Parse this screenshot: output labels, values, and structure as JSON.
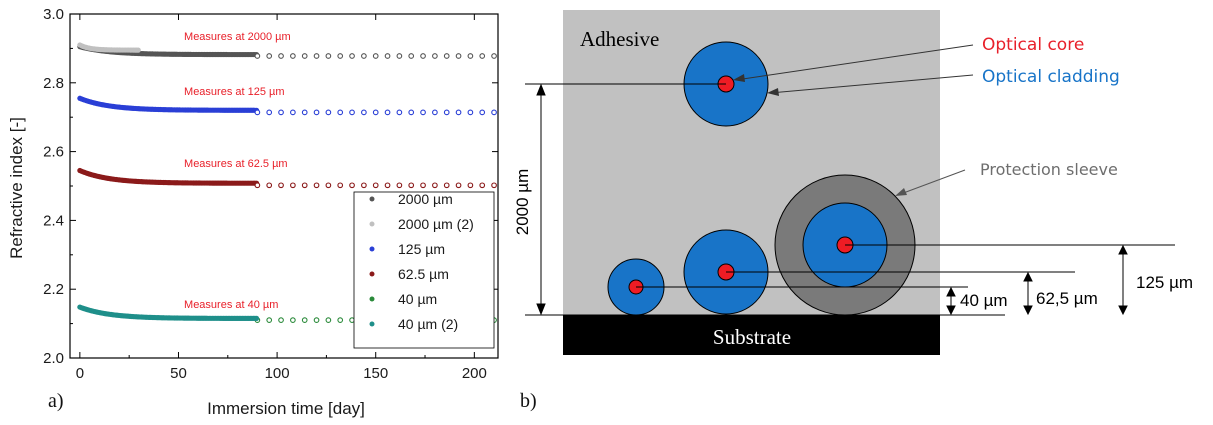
{
  "panel_a": {
    "label": "a)",
    "chart_data": {
      "type": "scatter",
      "xlabel": "Immersion time [day]",
      "ylabel": "Refractive index [-]",
      "xlim": [
        -5,
        212
      ],
      "ylim": [
        2.0,
        3.0
      ],
      "xticks": [
        0,
        50,
        100,
        150,
        200
      ],
      "yticks": [
        2.0,
        2.2,
        2.4,
        2.6,
        2.8,
        3.0
      ],
      "ytick_labels": [
        "2.0",
        "2.2",
        "2.4",
        "2.6",
        "2.8",
        "3.0"
      ],
      "grid": false,
      "legend_position": "bottom-right",
      "series": [
        {
          "name": "2000 µm",
          "color": "#555555",
          "dense_x_range": [
            0,
            90
          ],
          "dense_start": 2.905,
          "dense_end": 2.882,
          "sparse_x": [
            90,
            96,
            102,
            108,
            114,
            120,
            126,
            132,
            138,
            144,
            150,
            156,
            162,
            168,
            174,
            180,
            186,
            192,
            198,
            204,
            210
          ],
          "sparse_y": 2.878
        },
        {
          "name": "2000 µm (2)",
          "color": "#c0c0c0",
          "dense_x_range": [
            0,
            30
          ],
          "dense_start": 2.91,
          "dense_end": 2.895
        },
        {
          "name": "125 µm",
          "color": "#2a3fd6",
          "dense_x_range": [
            0,
            90
          ],
          "dense_start": 2.755,
          "dense_end": 2.72,
          "sparse_x": [
            90,
            96,
            102,
            108,
            114,
            120,
            126,
            132,
            138,
            144,
            150,
            156,
            162,
            168,
            174,
            180,
            186,
            192,
            198,
            204,
            210
          ],
          "sparse_y": 2.714
        },
        {
          "name": "62.5 µm",
          "color": "#8b1a1a",
          "dense_x_range": [
            0,
            90
          ],
          "dense_start": 2.545,
          "dense_end": 2.508,
          "sparse_x": [
            90,
            96,
            102,
            108,
            114,
            120,
            126,
            132,
            138,
            144,
            150,
            156,
            162,
            168,
            174,
            180,
            186,
            192,
            198,
            204,
            210
          ],
          "sparse_y": 2.502
        },
        {
          "name": "40 µm",
          "color": "#2a8a3a",
          "sparse_x": [
            90,
            96,
            102,
            108,
            114,
            120,
            126,
            132,
            138,
            144,
            150,
            156,
            162,
            168,
            174,
            180,
            186,
            192,
            198,
            204,
            210
          ],
          "sparse_y": 2.11
        },
        {
          "name": "40 µm (2)",
          "color": "#1f8f8a",
          "dense_x_range": [
            0,
            90
          ],
          "dense_start": 2.148,
          "dense_end": 2.115
        }
      ],
      "annotations": [
        {
          "text": "Measures at 2000 µm",
          "x": 30,
          "y": 2.925
        },
        {
          "text": "Measures at 125 µm",
          "x": 30,
          "y": 2.765
        },
        {
          "text": "Measures at 62.5 µm",
          "x": 30,
          "y": 2.555
        },
        {
          "text": "Measures at 40 µm",
          "x": 30,
          "y": 2.145
        }
      ],
      "annotation_color": "#e8202a"
    }
  },
  "panel_b": {
    "label": "b)",
    "adhesive_label": "Adhesive",
    "substrate_label": "Substrate",
    "optical_core_label": "Optical core",
    "optical_cladding_label": "Optical cladding",
    "protection_sleeve_label": "Protection sleeve",
    "dim_2000": "2000 µm",
    "dim_40": "40 µm",
    "dim_62": "62,5 µm",
    "dim_125": "125 µm",
    "colors": {
      "adhesive": "#c1c1c1",
      "substrate": "#000000",
      "cladding": "#1874c8",
      "core": "#ee1c24",
      "sleeve": "#7a7a7a",
      "core_text": "#e8202a",
      "cladding_text": "#1874c8",
      "sleeve_text": "#6e6e6e"
    }
  }
}
